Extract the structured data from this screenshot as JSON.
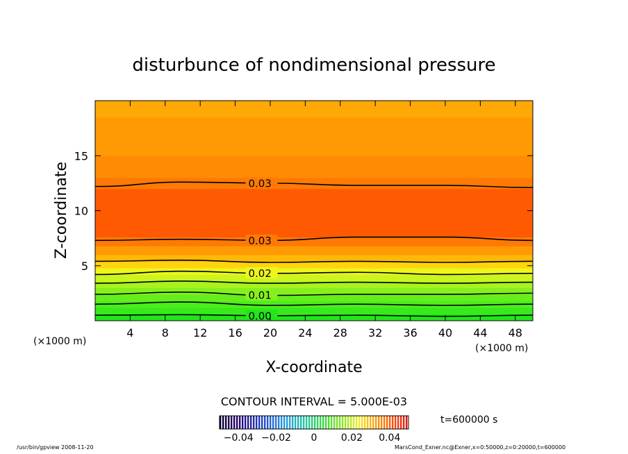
{
  "chart_data": {
    "type": "contour",
    "title": "disturbunce of nondimensional pressure",
    "xlabel": "X-coordinate",
    "ylabel": "Z-coordinate",
    "x_unit": "(×1000 m)",
    "y_unit": "(×1000 m)",
    "xlim": [
      0,
      50
    ],
    "ylim": [
      0,
      20
    ],
    "xticks": [
      4,
      8,
      12,
      16,
      20,
      24,
      28,
      32,
      36,
      40,
      44,
      48
    ],
    "yticks": [
      5,
      10,
      15
    ],
    "contour_interval_text": "CONTOUR INTERVAL = 5.000E-03",
    "time_text": "t=600000 s",
    "colorbar": {
      "min": -0.05,
      "max": 0.05,
      "tick_values": [
        -0.04,
        -0.02,
        0,
        0.02,
        0.04
      ],
      "tick_labels": [
        "−0.04",
        "−0.02",
        "0",
        "0.02",
        "0.04"
      ]
    },
    "bands": [
      {
        "z_top": 0.6,
        "color": "#22e61a"
      },
      {
        "z_top": 1.2,
        "color": "#36ea1c"
      },
      {
        "z_top": 1.8,
        "color": "#4ced1c"
      },
      {
        "z_top": 2.4,
        "color": "#66ee1c"
      },
      {
        "z_top": 3.0,
        "color": "#86f01e"
      },
      {
        "z_top": 3.6,
        "color": "#a8f21e"
      },
      {
        "z_top": 4.2,
        "color": "#ccf41e"
      },
      {
        "z_top": 4.8,
        "color": "#eef51c"
      },
      {
        "z_top": 5.4,
        "color": "#ffd40e"
      },
      {
        "z_top": 6.0,
        "color": "#ffb806"
      },
      {
        "z_top": 6.8,
        "color": "#ff9a04"
      },
      {
        "z_top": 7.6,
        "color": "#ff7a04"
      },
      {
        "z_top": 12.0,
        "color": "#ff5a02"
      },
      {
        "z_top": 13.0,
        "color": "#ff7a04"
      },
      {
        "z_top": 15.0,
        "color": "#ff8a04"
      },
      {
        "z_top": 18.5,
        "color": "#ff9a04"
      },
      {
        "z_top": 20.0,
        "color": "#ffa806"
      }
    ],
    "contours": [
      {
        "value": 0.0,
        "label": "0.00",
        "z": [
          0.5,
          0.55,
          0.45,
          0.5,
          0.4,
          0.5
        ],
        "label_x": 17.5
      },
      {
        "value": 0.005,
        "label": "",
        "z": [
          1.5,
          1.7,
          1.4,
          1.5,
          1.4,
          1.5
        ],
        "label_x": null
      },
      {
        "value": 0.01,
        "label": "0.01",
        "z": [
          2.4,
          2.6,
          2.3,
          2.4,
          2.4,
          2.5
        ],
        "label_x": 17.5
      },
      {
        "value": 0.015,
        "label": "",
        "z": [
          3.4,
          3.6,
          3.4,
          3.5,
          3.4,
          3.5
        ],
        "label_x": null
      },
      {
        "value": 0.02,
        "label": "0.02",
        "z": [
          4.2,
          4.5,
          4.3,
          4.4,
          4.2,
          4.3
        ],
        "label_x": 17.5
      },
      {
        "value": 0.025,
        "label": "",
        "z": [
          5.4,
          5.5,
          5.3,
          5.4,
          5.3,
          5.4
        ],
        "label_x": null
      },
      {
        "value": 0.03,
        "label": "0.03",
        "z": [
          7.3,
          7.4,
          7.3,
          7.6,
          7.6,
          7.3
        ],
        "label_x": 17.5
      },
      {
        "value": 0.03,
        "label": "0.03",
        "z": [
          12.2,
          12.6,
          12.5,
          12.3,
          12.3,
          12.1
        ],
        "label_x": 17.5
      }
    ]
  },
  "footer": {
    "left": "/usr/bin/gpview   2008-11-20",
    "right": "MarsCond_Exner.nc@Exner,x=0:50000,z=0:20000,t=600000"
  }
}
